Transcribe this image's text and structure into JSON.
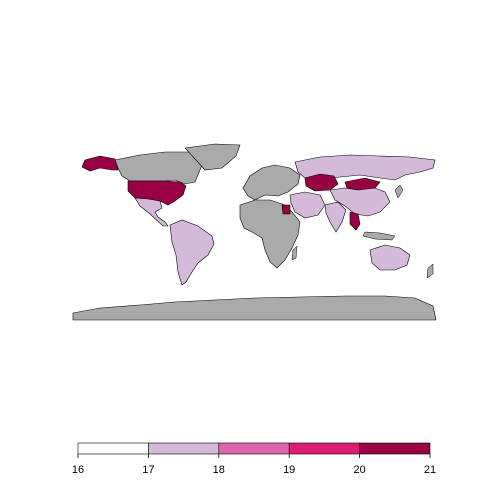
{
  "colors": {
    "no_data": "#aaaaaa",
    "bin_16_17": "#ffffff",
    "bin_17_18": "#d4b9da",
    "bin_18_19": "#df65b0",
    "bin_19_20": "#dd1c77",
    "bin_20_21": "#980043",
    "border": "#000000"
  },
  "legend": {
    "breaks": [
      "16",
      "17",
      "18",
      "19",
      "20",
      "21"
    ]
  },
  "regions": [
    {
      "name": "Alaska",
      "bin": "20-21"
    },
    {
      "name": "Canada",
      "bin": "no-data"
    },
    {
      "name": "Greenland",
      "bin": "no-data"
    },
    {
      "name": "United States",
      "bin": "20-21"
    },
    {
      "name": "Mexico",
      "bin": "17-18"
    },
    {
      "name": "South America",
      "bin": "17-18"
    },
    {
      "name": "Europe",
      "bin": "no-data"
    },
    {
      "name": "Russia",
      "bin": "17-18"
    },
    {
      "name": "Kazakhstan",
      "bin": "20-21"
    },
    {
      "name": "Mongolia",
      "bin": "20-21"
    },
    {
      "name": "China",
      "bin": "17-18"
    },
    {
      "name": "Middle East",
      "bin": "17-18"
    },
    {
      "name": "India",
      "bin": "17-18"
    },
    {
      "name": "Southeast Asia",
      "bin": "20-21"
    },
    {
      "name": "Africa",
      "bin": "no-data"
    },
    {
      "name": "Egypt",
      "bin": "20-21"
    },
    {
      "name": "Australia",
      "bin": "17-18"
    },
    {
      "name": "Antarctica",
      "bin": "no-data"
    }
  ]
}
